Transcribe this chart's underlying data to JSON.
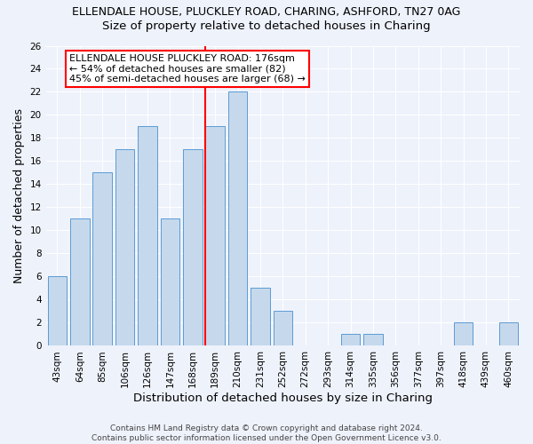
{
  "title1": "ELLENDALE HOUSE, PLUCKLEY ROAD, CHARING, ASHFORD, TN27 0AG",
  "title2": "Size of property relative to detached houses in Charing",
  "xlabel": "Distribution of detached houses by size in Charing",
  "ylabel": "Number of detached properties",
  "categories": [
    "43sqm",
    "64sqm",
    "85sqm",
    "106sqm",
    "126sqm",
    "147sqm",
    "168sqm",
    "189sqm",
    "210sqm",
    "231sqm",
    "252sqm",
    "272sqm",
    "293sqm",
    "314sqm",
    "335sqm",
    "356sqm",
    "377sqm",
    "397sqm",
    "418sqm",
    "439sqm",
    "460sqm"
  ],
  "values": [
    6,
    11,
    15,
    17,
    19,
    11,
    17,
    19,
    22,
    5,
    3,
    0,
    0,
    1,
    1,
    0,
    0,
    0,
    2,
    0,
    2
  ],
  "bar_color": "#c6d9ec",
  "bar_edge_color": "#5b9bd5",
  "red_line_x": 6.57,
  "annotation_text": "ELLENDALE HOUSE PLUCKLEY ROAD: 176sqm\n← 54% of detached houses are smaller (82)\n45% of semi-detached houses are larger (68) →",
  "ylim": [
    0,
    26
  ],
  "yticks": [
    0,
    2,
    4,
    6,
    8,
    10,
    12,
    14,
    16,
    18,
    20,
    22,
    24,
    26
  ],
  "footer1": "Contains HM Land Registry data © Crown copyright and database right 2024.",
  "footer2": "Contains public sector information licensed under the Open Government Licence v3.0.",
  "bg_color": "#eef2fb",
  "grid_color": "#ffffff",
  "title1_fontsize": 9,
  "title2_fontsize": 9.5,
  "tick_fontsize": 7.5,
  "ylabel_fontsize": 9,
  "xlabel_fontsize": 9.5,
  "footer_fontsize": 6.5,
  "annot_fontsize": 8
}
